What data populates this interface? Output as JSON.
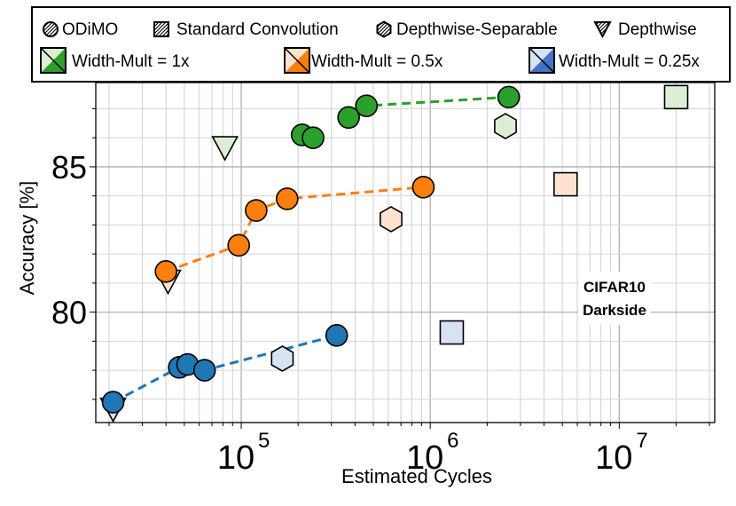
{
  "chart_data": {
    "type": "scatter",
    "title": "",
    "annotation": [
      "CIFAR10",
      "Darkside"
    ],
    "xlabel": "Estimated Cycles",
    "ylabel": "Accuracy [%]",
    "xscale": "log",
    "xlim": [
      17000,
      32000000
    ],
    "ylim": [
      76.2,
      87.9
    ],
    "x_ticks": [
      {
        "value": 100000,
        "base": "10",
        "exp": "5"
      },
      {
        "value": 1000000,
        "base": "10",
        "exp": "6"
      },
      {
        "value": 10000000,
        "base": "10",
        "exp": "7"
      }
    ],
    "y_ticks": [
      {
        "value": 80,
        "label": "80"
      },
      {
        "value": 85,
        "label": "85"
      }
    ],
    "legend": {
      "methods": [
        {
          "name": "ODiMO",
          "marker": "circle"
        },
        {
          "name": "Standard Convolution",
          "marker": "square"
        },
        {
          "name": "Depthwise-Separable",
          "marker": "hexagon"
        },
        {
          "name": "Depthwise",
          "marker": "triangle"
        }
      ],
      "widths": [
        {
          "name": "Width-Mult = 1x",
          "color": "#2ca02c",
          "light": "#dcefd5"
        },
        {
          "name": "Width-Mult = 0.5x",
          "color": "#ff7f0e",
          "light": "#fde2cf"
        },
        {
          "name": "Width-Mult = 0.25x",
          "color": "#1f77b4",
          "light": "#d7e3f3"
        }
      ]
    },
    "series": [
      {
        "name": "ODiMO Width-Mult = 1x",
        "marker": "circle",
        "style": "dark",
        "color": "#2ca02c",
        "points": [
          [
            210000,
            86.1
          ],
          [
            240000,
            86.0
          ],
          [
            370000,
            86.7
          ],
          [
            460000,
            87.1
          ],
          [
            2600000,
            87.4
          ]
        ],
        "line": [
          [
            370000,
            86.7
          ],
          [
            460000,
            87.1
          ],
          [
            2600000,
            87.4
          ]
        ]
      },
      {
        "name": "ODiMO Width-Mult = 0.5x",
        "marker": "circle",
        "style": "dark",
        "color": "#ff7f0e",
        "points": [
          [
            40000,
            81.4
          ],
          [
            97000,
            82.3
          ],
          [
            120000,
            83.5
          ],
          [
            175000,
            83.9
          ],
          [
            920000,
            84.3
          ]
        ],
        "line": [
          [
            40000,
            81.4
          ],
          [
            97000,
            82.3
          ],
          [
            120000,
            83.5
          ],
          [
            175000,
            83.9
          ],
          [
            920000,
            84.3
          ]
        ]
      },
      {
        "name": "ODiMO Width-Mult = 0.25x",
        "marker": "circle",
        "style": "dark",
        "color": "#1f77b4",
        "points": [
          [
            21000,
            76.9
          ],
          [
            47000,
            78.1
          ],
          [
            52000,
            78.2
          ],
          [
            64000,
            78.0
          ],
          [
            320000,
            79.2
          ]
        ],
        "line": [
          [
            21000,
            76.9
          ],
          [
            47000,
            78.1
          ],
          [
            52000,
            78.2
          ],
          [
            64000,
            78.0
          ],
          [
            320000,
            79.2
          ]
        ]
      },
      {
        "name": "Standard Convolution 1x",
        "marker": "square",
        "style": "light",
        "color": "#dcefd5",
        "points": [
          [
            20000000,
            87.4
          ]
        ]
      },
      {
        "name": "Standard Convolution 0.5x",
        "marker": "square",
        "style": "light",
        "color": "#fde2cf",
        "points": [
          [
            5200000,
            84.4
          ]
        ]
      },
      {
        "name": "Standard Convolution 0.25x",
        "marker": "square",
        "style": "light",
        "color": "#d7e3f3",
        "points": [
          [
            1300000,
            79.3
          ]
        ]
      },
      {
        "name": "Depthwise-Separable 1x",
        "marker": "hexagon",
        "style": "light",
        "color": "#dcefd5",
        "points": [
          [
            2500000,
            86.4
          ]
        ]
      },
      {
        "name": "Depthwise-Separable 0.5x",
        "marker": "hexagon",
        "style": "light",
        "color": "#fde2cf",
        "points": [
          [
            620000,
            83.2
          ]
        ]
      },
      {
        "name": "Depthwise-Separable 0.25x",
        "marker": "hexagon",
        "style": "light",
        "color": "#d7e3f3",
        "points": [
          [
            165000,
            78.4
          ]
        ]
      },
      {
        "name": "Depthwise 1x",
        "marker": "triangle",
        "style": "light",
        "color": "#dcefd5",
        "points": [
          [
            82000,
            85.7
          ]
        ]
      },
      {
        "name": "Depthwise 0.5x",
        "marker": "triangle",
        "style": "light",
        "color": "#fde2cf",
        "points": [
          [
            41000,
            81.1
          ]
        ]
      },
      {
        "name": "Depthwise 0.25x",
        "marker": "triangle",
        "style": "light",
        "color": "#d7e3f3",
        "points": [
          [
            21000,
            76.7
          ]
        ]
      }
    ]
  }
}
